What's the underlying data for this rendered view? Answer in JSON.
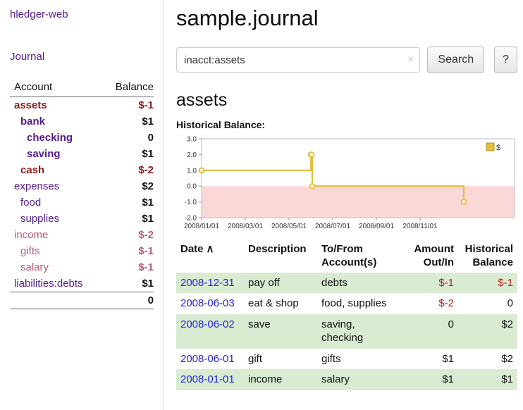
{
  "colors": {
    "link_purple": "#551A8B",
    "link_blue": "#2424d8",
    "negative_red": "#8e1b1b",
    "income_rose": "#b85c72",
    "row_green": "#d9ecd2"
  },
  "sidebar": {
    "app_title": "hledger-web",
    "nav_journal": "Journal",
    "columns": {
      "account": "Account",
      "balance": "Balance"
    },
    "accounts": [
      {
        "name": "assets",
        "balance": "$-1"
      },
      {
        "name": "bank",
        "balance": "$1"
      },
      {
        "name": "checking",
        "balance": "0"
      },
      {
        "name": "saving",
        "balance": "$1"
      },
      {
        "name": "cash",
        "balance": "$-2"
      },
      {
        "name": "expenses",
        "balance": "$2"
      },
      {
        "name": "food",
        "balance": "$1"
      },
      {
        "name": "supplies",
        "balance": "$1"
      },
      {
        "name": "income",
        "balance": "$-2"
      },
      {
        "name": "gifts",
        "balance": "$-1"
      },
      {
        "name": "salary",
        "balance": "$-1"
      },
      {
        "name": "liabilities:debts",
        "balance": "$1"
      }
    ],
    "total": "0"
  },
  "main": {
    "title": "sample.journal",
    "search": {
      "value": "inacct:assets",
      "clear_icon": "×",
      "button_label": "Search",
      "help_label": "?"
    },
    "account_heading": "assets",
    "chart_title": "Historical Balance:"
  },
  "chart_data": {
    "type": "line",
    "title": "Historical Balance",
    "legend": [
      "$"
    ],
    "ylim": [
      -2,
      3
    ],
    "yticks": [
      3,
      2,
      1,
      0,
      -1,
      -2
    ],
    "xticks": [
      "2008/01/01",
      "2008/03/01",
      "2008/05/01",
      "2008/07/01",
      "2008/09/01",
      "2008/11/01"
    ],
    "series": [
      {
        "name": "$",
        "points": [
          {
            "date": "2008-01-01",
            "value": 1
          },
          {
            "date": "2008-06-01",
            "value": 2
          },
          {
            "date": "2008-06-02",
            "value": 2
          },
          {
            "date": "2008-06-03",
            "value": 0
          },
          {
            "date": "2008-12-31",
            "value": -1
          }
        ]
      }
    ],
    "colors": {
      "line": "#e2bf3c",
      "marker_fill": "#fdf6dc",
      "negative_area": "#fbd8d8",
      "border": "#bbbbbb"
    }
  },
  "register": {
    "sort_indicator": "∧",
    "headers": [
      "Date",
      "Description",
      "To/From Account(s)",
      "Amount Out/In",
      "Historical Balance"
    ],
    "rows": [
      {
        "date": "2008-12-31",
        "description": "pay off",
        "accounts": "debts",
        "amount": "$-1",
        "balance": "$-1"
      },
      {
        "date": "2008-06-03",
        "description": "eat & shop",
        "accounts": "food, supplies",
        "amount": "$-2",
        "balance": "0"
      },
      {
        "date": "2008-06-02",
        "description": "save",
        "accounts": "saving, checking",
        "amount": "0",
        "balance": "$2"
      },
      {
        "date": "2008-06-01",
        "description": "gift",
        "accounts": "gifts",
        "amount": "$1",
        "balance": "$2"
      },
      {
        "date": "2008-01-01",
        "description": "income",
        "accounts": "salary",
        "amount": "$1",
        "balance": "$1"
      }
    ]
  }
}
